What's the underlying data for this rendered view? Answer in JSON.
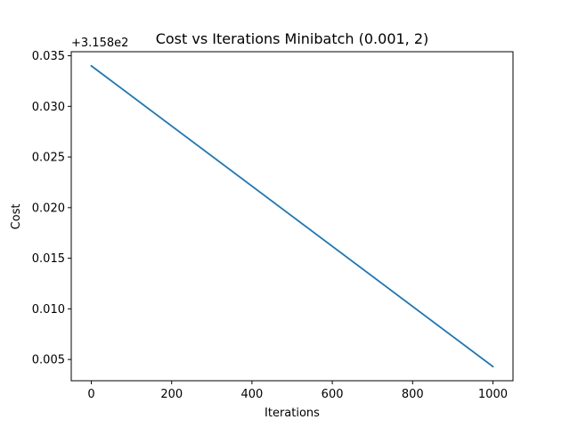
{
  "chart_data": {
    "type": "line",
    "title": "Cost vs Iterations Minibatch (0.001, 2)",
    "xlabel": "Iterations",
    "ylabel": "Cost",
    "offset_label": "+3.158e2",
    "xlim": [
      -50,
      1050
    ],
    "ylim": [
      0.0029,
      0.0354
    ],
    "x_ticks": [
      0,
      200,
      400,
      600,
      800,
      1000
    ],
    "x_tick_labels": [
      "0",
      "200",
      "400",
      "600",
      "800",
      "1000"
    ],
    "y_ticks": [
      0.005,
      0.01,
      0.015,
      0.02,
      0.025,
      0.03,
      0.035
    ],
    "y_tick_labels": [
      "0.005",
      "0.010",
      "0.015",
      "0.020",
      "0.025",
      "0.030",
      "0.035"
    ],
    "grid": false,
    "series": [
      {
        "color": "#1f77b4",
        "x": [
          0,
          1000
        ],
        "y": [
          0.034,
          0.0043
        ]
      }
    ]
  }
}
